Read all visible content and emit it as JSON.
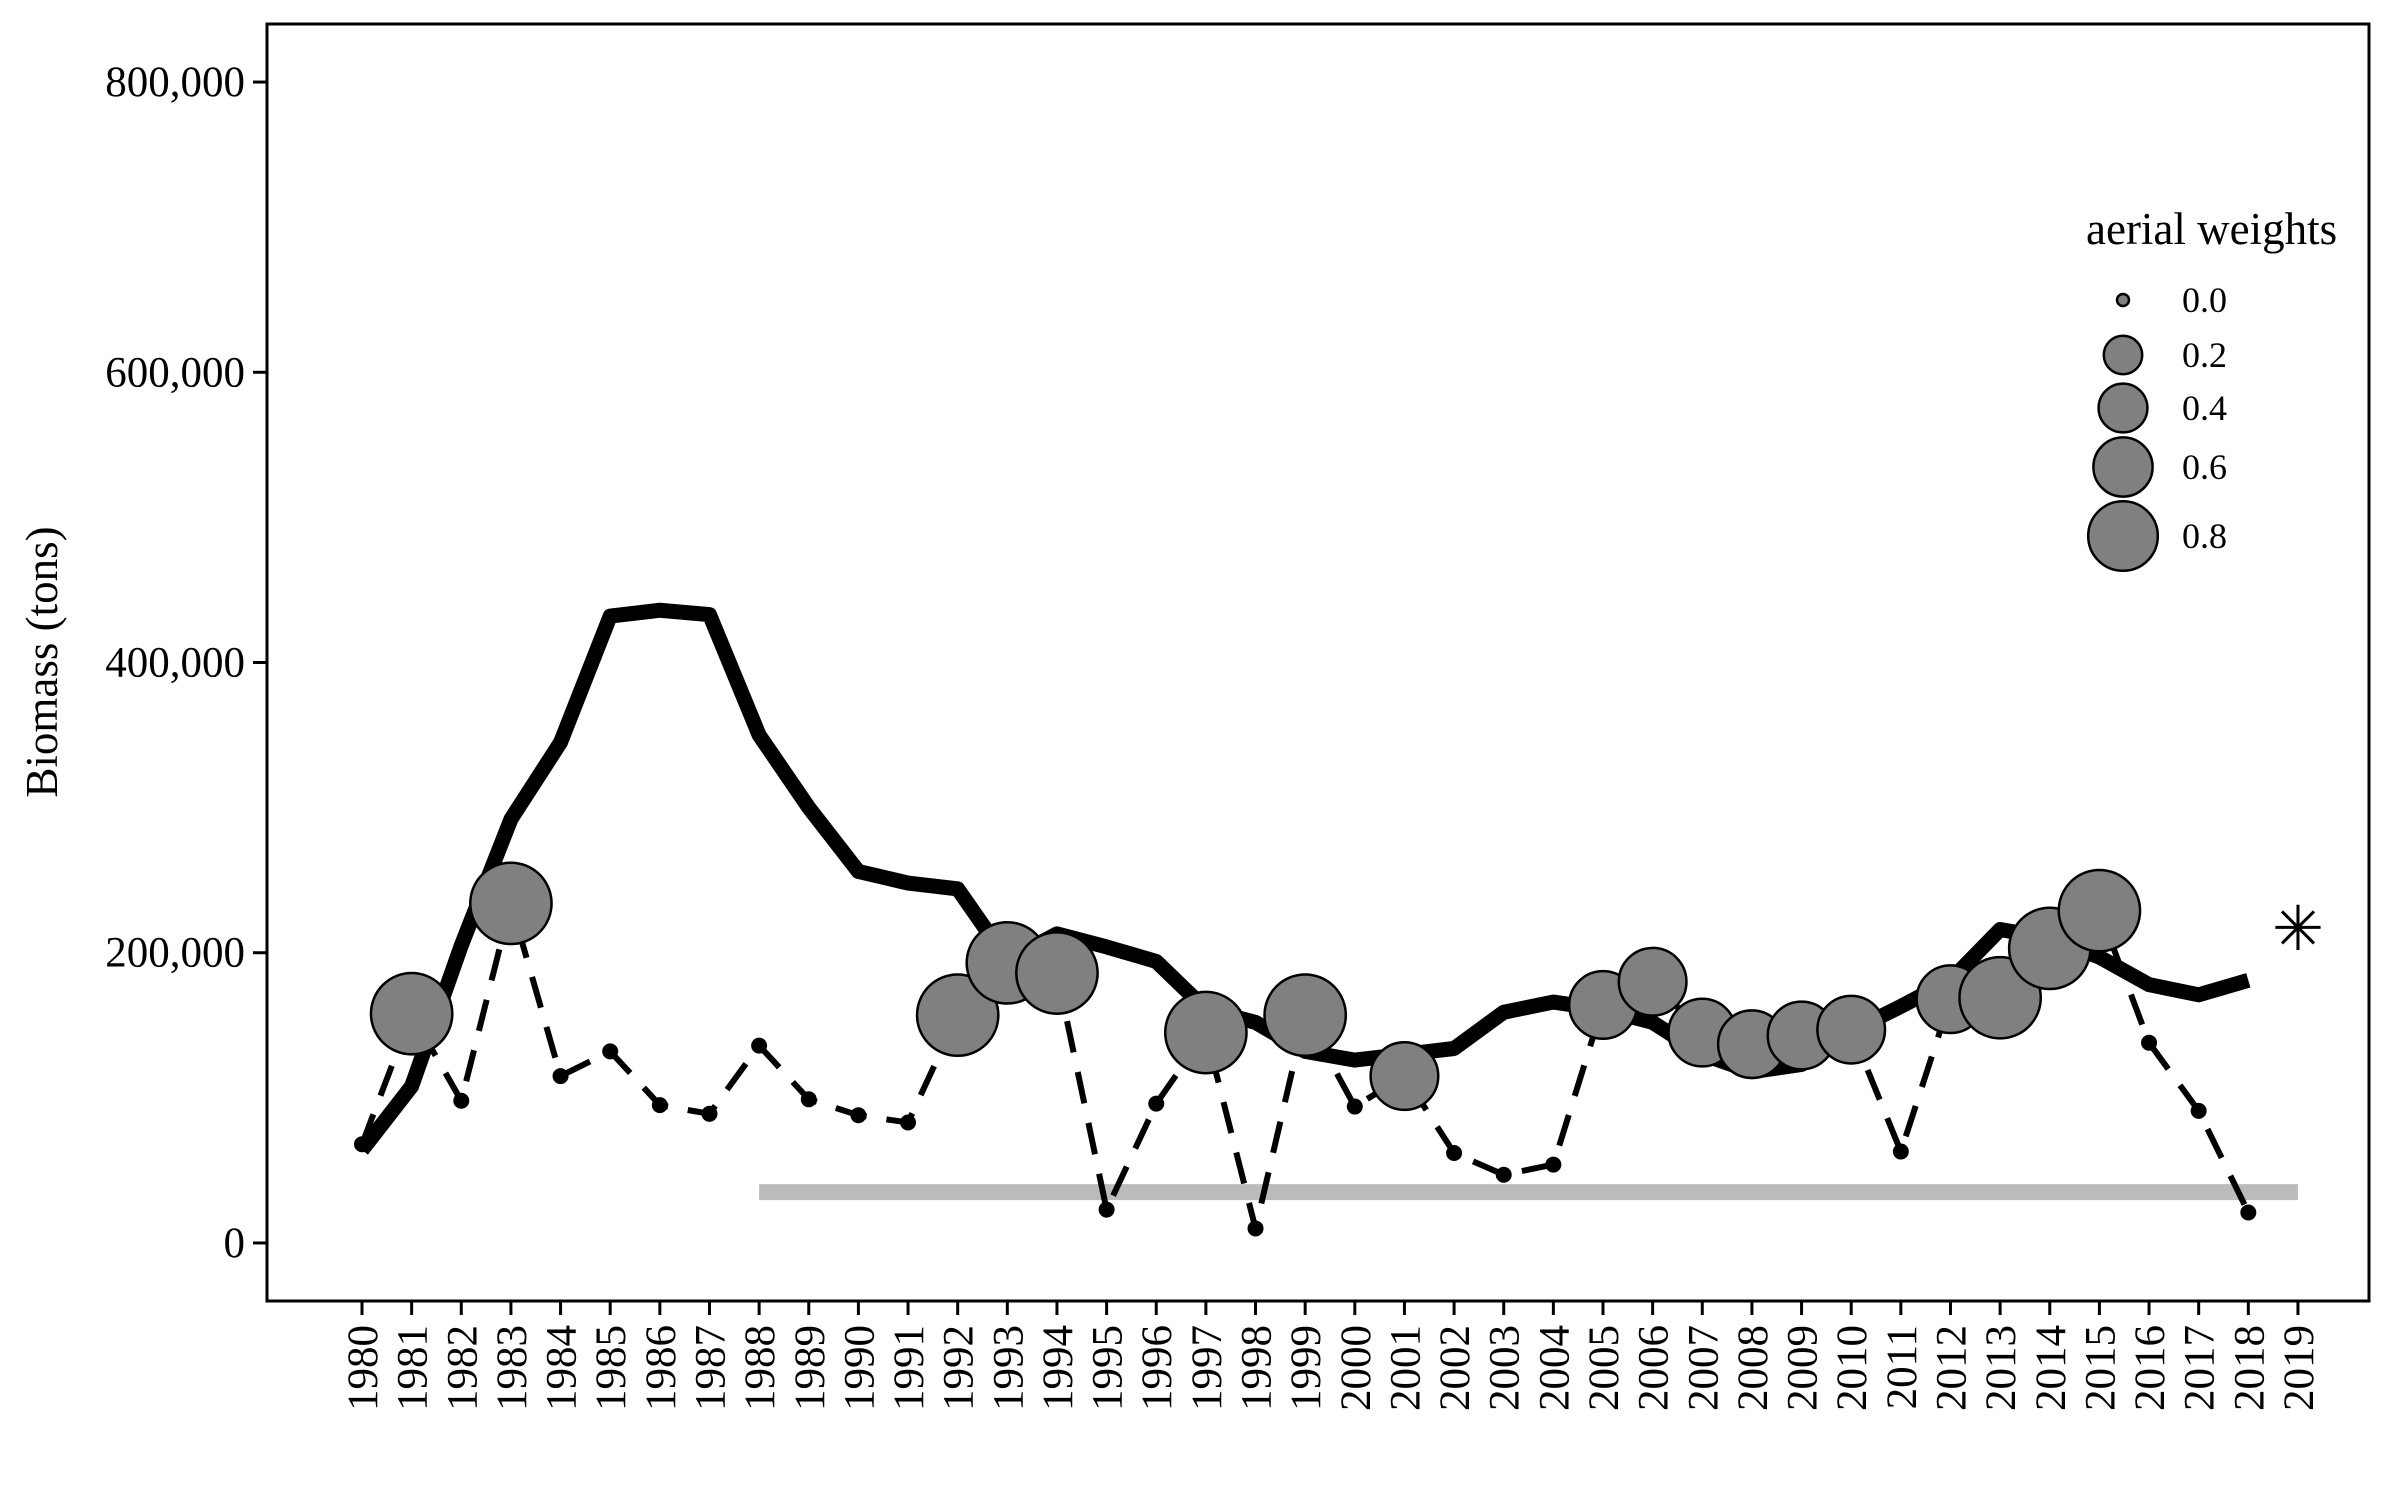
{
  "chart_data": {
    "type": "line",
    "xlabel": "",
    "ylabel": "Biomass (tons)",
    "ylim": [
      -40000,
      840000
    ],
    "y_ticks": [
      0,
      200000,
      400000,
      600000,
      800000
    ],
    "y_tick_labels": [
      "0",
      "200,000",
      "400,000",
      "600,000",
      "800,000"
    ],
    "categories": [
      "1980",
      "1981",
      "1982",
      "1983",
      "1984",
      "1985",
      "1986",
      "1987",
      "1988",
      "1989",
      "1990",
      "1991",
      "1992",
      "1993",
      "1994",
      "1995",
      "1996",
      "1997",
      "1998",
      "1999",
      "2000",
      "2001",
      "2002",
      "2003",
      "2004",
      "2005",
      "2006",
      "2007",
      "2008",
      "2009",
      "2010",
      "2011",
      "2012",
      "2013",
      "2014",
      "2015",
      "2016",
      "2017",
      "2018",
      "2019"
    ],
    "grid": false,
    "legend_position": "right",
    "series": [
      {
        "style": "solid-thick",
        "color": "#000000",
        "values": [
          64000,
          108000,
          205000,
          292000,
          345000,
          432000,
          436000,
          433000,
          350000,
          300000,
          256000,
          248000,
          244000,
          195000,
          213000,
          204000,
          194000,
          161000,
          152000,
          132000,
          126000,
          130000,
          134000,
          159000,
          166000,
          161000,
          152000,
          130000,
          118000,
          123000,
          146000,
          163000,
          181000,
          216000,
          210000,
          197000,
          178000,
          171000,
          181000,
          null
        ]
      },
      {
        "style": "dashed",
        "color": "#000000",
        "marker_fill_weighted": "#808080",
        "marker_fill_zero": "#000000",
        "values": [
          68000,
          158000,
          98000,
          234000,
          115000,
          132000,
          95000,
          89000,
          136000,
          99000,
          88000,
          83000,
          157000,
          193000,
          186000,
          23000,
          96000,
          145000,
          10000,
          157000,
          94000,
          115000,
          62000,
          47000,
          54000,
          164000,
          180000,
          145000,
          137000,
          143000,
          147000,
          63000,
          168000,
          169000,
          203000,
          229000,
          138000,
          91000,
          21000,
          null
        ],
        "aerial_weights": [
          0.0,
          0.6,
          0.0,
          0.6,
          0.0,
          0.0,
          0.0,
          0.0,
          0.0,
          0.0,
          0.0,
          0.0,
          0.6,
          0.6,
          0.6,
          0.0,
          0.0,
          0.6,
          0.0,
          0.6,
          0.0,
          0.4,
          0.0,
          0.0,
          0.0,
          0.4,
          0.4,
          0.4,
          0.4,
          0.4,
          0.4,
          0.0,
          0.4,
          0.6,
          0.6,
          0.6,
          0.0,
          0.0,
          0.0,
          null
        ]
      }
    ],
    "threshold": {
      "value": 35000,
      "x_start": "1988",
      "x_end": "2019",
      "color": "#bbbbbb"
    },
    "forecast_marker": {
      "x": "2019",
      "value": 217000,
      "symbol": "✳"
    },
    "size_legend": {
      "title": "aerial weights",
      "entries": [
        {
          "label": "0.0",
          "weight": 0.0
        },
        {
          "label": "0.2",
          "weight": 0.2
        },
        {
          "label": "0.4",
          "weight": 0.4
        },
        {
          "label": "0.6",
          "weight": 0.6
        },
        {
          "label": "0.8",
          "weight": 0.8
        }
      ]
    }
  }
}
